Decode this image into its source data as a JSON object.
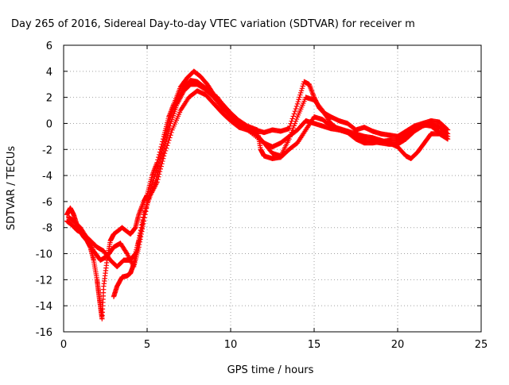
{
  "chart_data": {
    "type": "scatter",
    "title": "Day 265 of 2016, Sidereal Day-to-day VTEC variation (SDTVAR) for receiver m",
    "xlabel": "GPS time / hours",
    "ylabel": "SDTVAR / TECUs",
    "xlim": [
      0,
      25
    ],
    "ylim": [
      -16,
      6
    ],
    "x_ticks": [
      0,
      5,
      10,
      15,
      20,
      25
    ],
    "y_ticks": [
      -16,
      -14,
      -12,
      -10,
      -8,
      -6,
      -4,
      -2,
      0,
      2,
      4,
      6
    ],
    "grid": true,
    "marker": "plus",
    "color": "#ff0000",
    "series": [
      {
        "values": [
          [
            0.2,
            -7.0
          ],
          [
            0.4,
            -6.5
          ],
          [
            0.6,
            -7.0
          ],
          [
            0.8,
            -7.8
          ],
          [
            1.0,
            -8.3
          ],
          [
            1.2,
            -8.7
          ],
          [
            1.4,
            -9.0
          ],
          [
            1.6,
            -9.5
          ],
          [
            1.8,
            -10.5
          ],
          [
            2.0,
            -12.0
          ],
          [
            2.1,
            -13.0
          ],
          [
            2.2,
            -14.0
          ],
          [
            2.3,
            -15.0
          ],
          [
            2.4,
            -12.5
          ],
          [
            2.6,
            -10.5
          ],
          [
            2.8,
            -9.0
          ],
          [
            3.0,
            -8.5
          ],
          [
            3.5,
            -8.0
          ],
          [
            4.0,
            -8.5
          ],
          [
            4.3,
            -8.0
          ],
          [
            4.5,
            -7.0
          ],
          [
            4.8,
            -6.0
          ],
          [
            5.0,
            -5.5
          ],
          [
            5.3,
            -4.0
          ],
          [
            5.6,
            -3.0
          ],
          [
            6.0,
            -1.0
          ],
          [
            6.3,
            0.5
          ],
          [
            6.6,
            1.5
          ],
          [
            7.0,
            2.8
          ],
          [
            7.4,
            3.5
          ],
          [
            7.8,
            4.0
          ],
          [
            8.2,
            3.6
          ],
          [
            8.6,
            3.0
          ],
          [
            9.0,
            2.2
          ],
          [
            9.5,
            1.5
          ],
          [
            10.0,
            0.8
          ],
          [
            10.5,
            0.2
          ],
          [
            11.0,
            -0.3
          ],
          [
            11.5,
            -0.5
          ],
          [
            12.0,
            -0.7
          ],
          [
            12.5,
            -0.5
          ],
          [
            13.0,
            -0.6
          ],
          [
            13.5,
            -0.4
          ],
          [
            14.0,
            1.5
          ],
          [
            14.4,
            3.2
          ],
          [
            14.7,
            3.0
          ],
          [
            15.0,
            2.0
          ],
          [
            15.3,
            1.2
          ],
          [
            15.6,
            0.8
          ],
          [
            16.0,
            0.5
          ],
          [
            16.5,
            0.2
          ],
          [
            17.0,
            0.0
          ],
          [
            17.5,
            -0.5
          ],
          [
            18.0,
            -0.3
          ],
          [
            18.5,
            -0.6
          ],
          [
            19.0,
            -0.8
          ],
          [
            19.5,
            -0.9
          ],
          [
            20.0,
            -1.0
          ],
          [
            20.5,
            -0.6
          ],
          [
            21.0,
            -0.2
          ],
          [
            21.5,
            0.0
          ],
          [
            22.0,
            0.2
          ],
          [
            22.5,
            0.1
          ],
          [
            23.0,
            -0.5
          ]
        ]
      },
      {
        "values": [
          [
            0.2,
            -7.5
          ],
          [
            0.5,
            -7.8
          ],
          [
            0.8,
            -8.2
          ],
          [
            1.2,
            -8.5
          ],
          [
            1.6,
            -9.0
          ],
          [
            2.0,
            -9.5
          ],
          [
            2.4,
            -9.8
          ],
          [
            2.8,
            -10.5
          ],
          [
            3.2,
            -11.0
          ],
          [
            3.6,
            -10.5
          ],
          [
            4.0,
            -10.5
          ],
          [
            4.3,
            -10.0
          ],
          [
            4.6,
            -8.5
          ],
          [
            5.0,
            -6.0
          ],
          [
            5.5,
            -4.5
          ],
          [
            6.0,
            -2.0
          ],
          [
            6.4,
            0.0
          ],
          [
            6.8,
            1.5
          ],
          [
            7.2,
            2.5
          ],
          [
            7.6,
            3.0
          ],
          [
            8.0,
            3.0
          ],
          [
            8.5,
            2.6
          ],
          [
            9.0,
            2.0
          ],
          [
            9.5,
            1.2
          ],
          [
            10.0,
            0.6
          ],
          [
            10.5,
            0.0
          ],
          [
            11.0,
            -0.5
          ],
          [
            11.5,
            -0.8
          ],
          [
            12.0,
            -1.5
          ],
          [
            12.5,
            -2.3
          ],
          [
            13.0,
            -2.5
          ],
          [
            13.5,
            -1.2
          ],
          [
            14.0,
            0.5
          ],
          [
            14.5,
            2.0
          ],
          [
            15.0,
            1.8
          ],
          [
            15.5,
            1.0
          ],
          [
            16.0,
            0.0
          ],
          [
            16.5,
            -0.5
          ],
          [
            17.0,
            -0.6
          ],
          [
            17.5,
            -1.0
          ],
          [
            18.0,
            -1.3
          ],
          [
            18.5,
            -1.4
          ],
          [
            19.0,
            -1.5
          ],
          [
            19.5,
            -1.6
          ],
          [
            20.0,
            -1.6
          ],
          [
            20.5,
            -1.2
          ],
          [
            21.0,
            -0.6
          ],
          [
            21.5,
            -0.2
          ],
          [
            22.0,
            0.0
          ],
          [
            22.5,
            -0.3
          ],
          [
            23.0,
            -0.8
          ]
        ]
      },
      {
        "values": [
          [
            0.3,
            -7.2
          ],
          [
            0.6,
            -7.5
          ],
          [
            1.0,
            -8.0
          ],
          [
            1.4,
            -8.8
          ],
          [
            1.8,
            -9.8
          ],
          [
            2.2,
            -10.5
          ],
          [
            2.6,
            -10.2
          ],
          [
            3.0,
            -9.5
          ],
          [
            3.4,
            -9.2
          ],
          [
            3.8,
            -10.0
          ],
          [
            4.2,
            -11.0
          ],
          [
            4.5,
            -9.5
          ],
          [
            4.8,
            -7.5
          ],
          [
            5.2,
            -5.0
          ],
          [
            5.6,
            -3.5
          ],
          [
            6.0,
            -1.5
          ],
          [
            6.4,
            0.5
          ],
          [
            6.8,
            1.8
          ],
          [
            7.2,
            2.8
          ],
          [
            7.6,
            3.3
          ],
          [
            8.0,
            3.2
          ],
          [
            8.4,
            2.8
          ],
          [
            8.8,
            2.4
          ],
          [
            9.2,
            2.0
          ],
          [
            9.8,
            1.0
          ],
          [
            10.4,
            0.3
          ],
          [
            11.0,
            -0.2
          ],
          [
            11.6,
            -0.5
          ],
          [
            11.8,
            -2.0
          ],
          [
            12.0,
            -2.5
          ],
          [
            12.5,
            -2.7
          ],
          [
            13.0,
            -2.6
          ],
          [
            13.5,
            -2.0
          ],
          [
            14.0,
            -1.5
          ],
          [
            14.5,
            -0.5
          ],
          [
            15.0,
            0.5
          ],
          [
            15.5,
            0.3
          ],
          [
            16.0,
            -0.2
          ],
          [
            16.5,
            -0.4
          ],
          [
            17.0,
            -0.6
          ],
          [
            17.5,
            -0.8
          ],
          [
            18.0,
            -1.0
          ],
          [
            18.5,
            -1.1
          ],
          [
            19.0,
            -1.3
          ],
          [
            19.5,
            -1.5
          ],
          [
            20.0,
            -1.8
          ],
          [
            20.5,
            -2.5
          ],
          [
            20.8,
            -2.7
          ],
          [
            21.2,
            -2.2
          ],
          [
            21.6,
            -1.5
          ],
          [
            22.0,
            -0.8
          ],
          [
            22.5,
            -0.8
          ],
          [
            23.0,
            -1.2
          ]
        ]
      },
      {
        "values": [
          [
            3.0,
            -13.3
          ],
          [
            3.2,
            -12.5
          ],
          [
            3.5,
            -11.8
          ],
          [
            3.8,
            -11.7
          ],
          [
            4.0,
            -11.5
          ],
          [
            4.2,
            -10.8
          ],
          [
            4.5,
            -9.0
          ],
          [
            4.8,
            -7.0
          ],
          [
            5.2,
            -5.5
          ],
          [
            5.6,
            -4.5
          ],
          [
            6.0,
            -2.5
          ],
          [
            6.5,
            -0.5
          ],
          [
            7.0,
            1.0
          ],
          [
            7.5,
            2.0
          ],
          [
            8.0,
            2.5
          ],
          [
            8.5,
            2.2
          ],
          [
            9.0,
            1.5
          ],
          [
            9.5,
            0.8
          ],
          [
            10.0,
            0.2
          ],
          [
            10.5,
            -0.3
          ],
          [
            11.0,
            -0.5
          ],
          [
            12.0,
            -1.5
          ],
          [
            12.5,
            -1.8
          ],
          [
            13.0,
            -1.5
          ],
          [
            13.5,
            -1.0
          ],
          [
            14.0,
            -0.5
          ],
          [
            14.5,
            0.2
          ],
          [
            15.0,
            0.0
          ],
          [
            15.5,
            -0.2
          ],
          [
            16.0,
            -0.4
          ],
          [
            16.5,
            -0.5
          ],
          [
            17.0,
            -0.7
          ],
          [
            17.5,
            -1.2
          ],
          [
            18.0,
            -1.5
          ],
          [
            18.5,
            -1.5
          ],
          [
            19.0,
            -1.4
          ],
          [
            19.5,
            -1.3
          ],
          [
            20.0,
            -1.3
          ],
          [
            20.5,
            -0.9
          ],
          [
            21.0,
            -0.4
          ],
          [
            21.5,
            -0.1
          ],
          [
            22.0,
            -0.2
          ],
          [
            22.5,
            -0.7
          ],
          [
            23.0,
            -1.0
          ]
        ]
      }
    ]
  }
}
